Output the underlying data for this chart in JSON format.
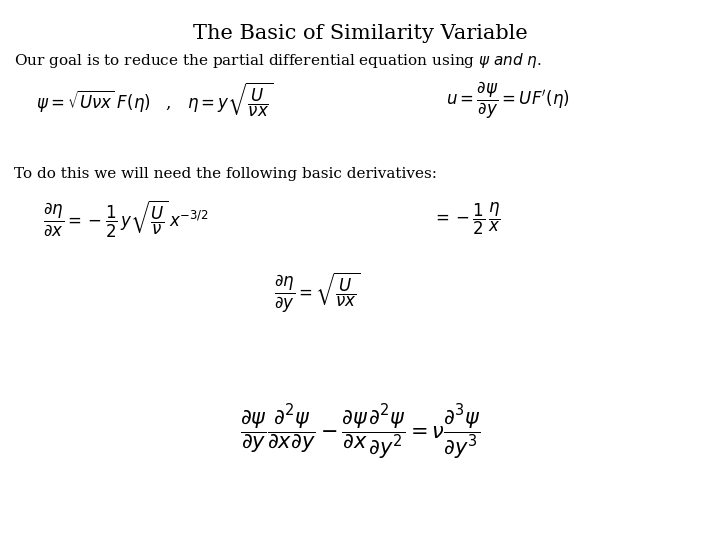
{
  "title": "The Basic of Similarity Variable",
  "background_color": "#ffffff",
  "text_color": "#000000",
  "title_fontsize": 15,
  "body_fontsize": 11,
  "eq_fontsize": 12,
  "eq_large_fontsize": 15,
  "figsize": [
    7.2,
    5.4
  ],
  "dpi": 100
}
